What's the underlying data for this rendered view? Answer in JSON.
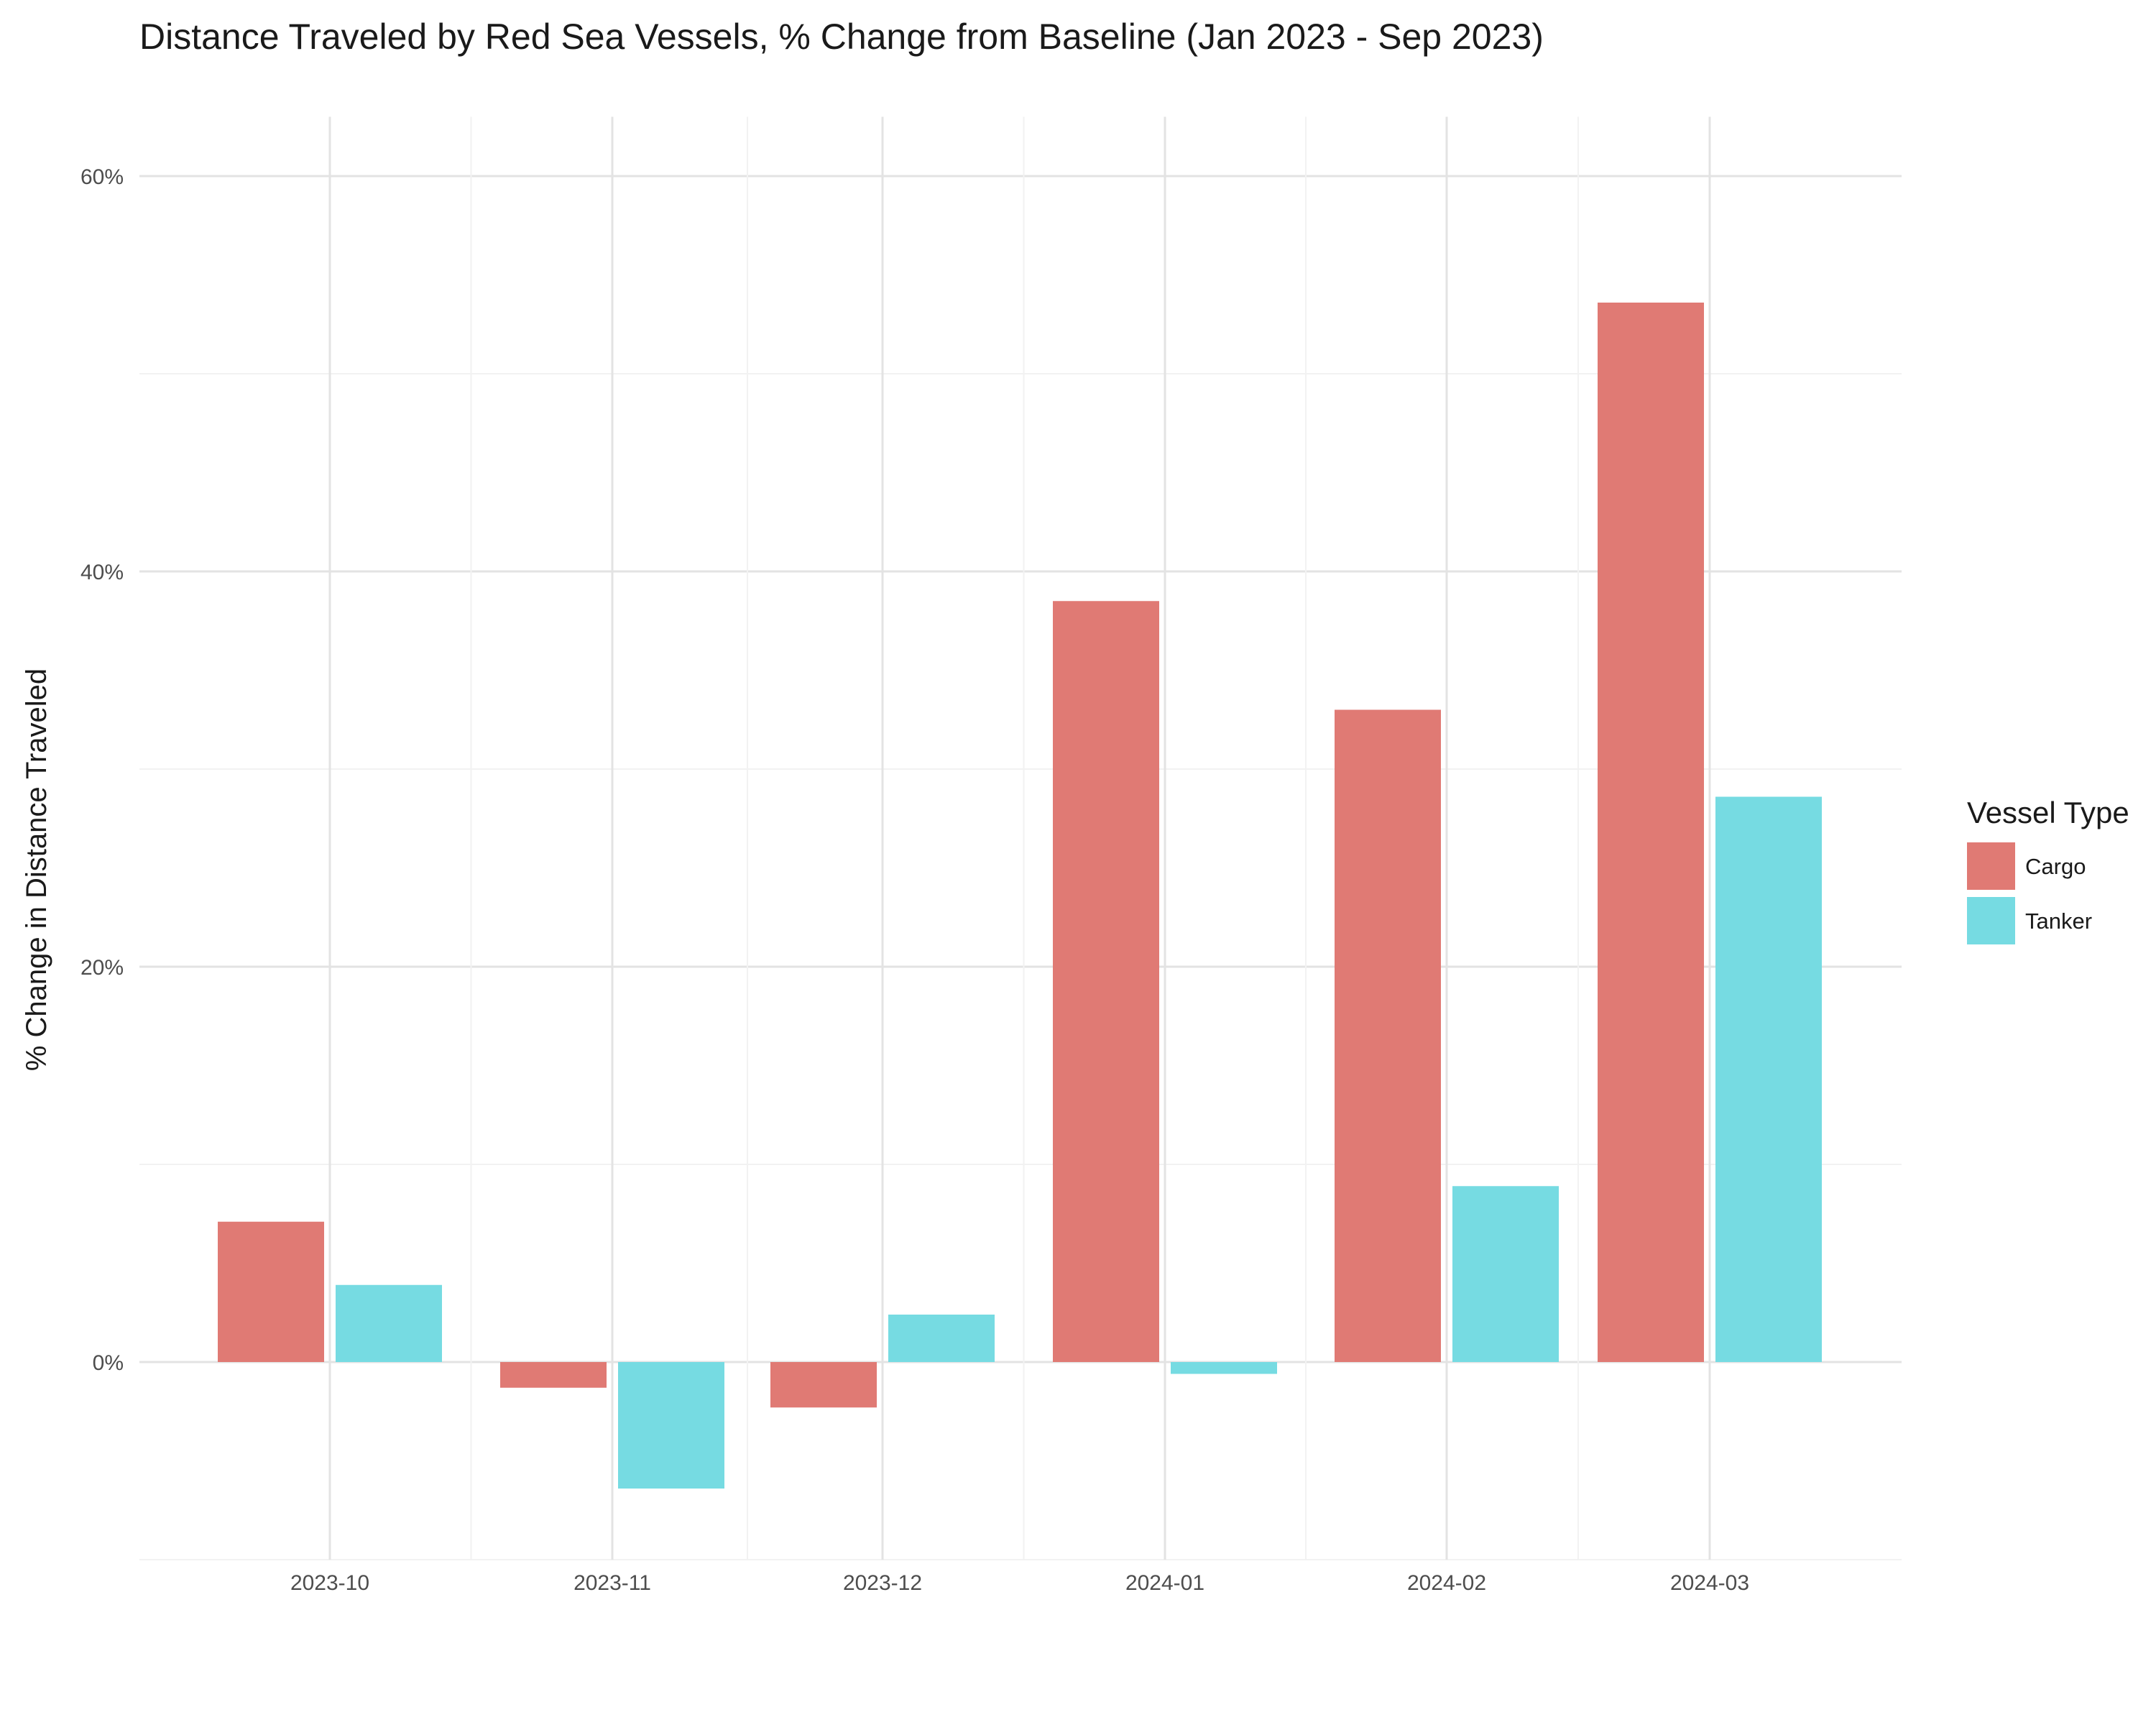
{
  "chart_data": {
    "type": "bar",
    "title": "Distance Traveled by Red Sea Vessels, % Change from Baseline (Jan 2023 - Sep 2023)",
    "xlabel": "",
    "ylabel": "% Change in Distance Traveled",
    "categories": [
      "2023-10",
      "2023-11",
      "2023-12",
      "2024-01",
      "2024-02",
      "2024-03"
    ],
    "series": [
      {
        "name": "Cargo",
        "color": "#e07a74",
        "values": [
          7.1,
          -1.3,
          -2.3,
          38.5,
          33.0,
          53.6
        ]
      },
      {
        "name": "Tanker",
        "color": "#76dbe2",
        "values": [
          3.9,
          -6.4,
          2.4,
          -0.6,
          8.9,
          28.6
        ]
      }
    ],
    "y_ticks": [
      0,
      20,
      40,
      60
    ],
    "y_tick_labels": [
      "0%",
      "20%",
      "40%",
      "60%"
    ],
    "ylim": [
      -10,
      63
    ],
    "grid": true,
    "legend": {
      "title": "Vessel Type",
      "position": "right"
    }
  }
}
